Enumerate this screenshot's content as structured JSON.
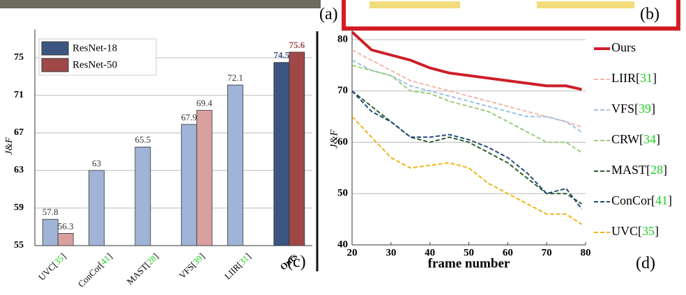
{
  "figure_labels": [
    "(a)",
    "(b)"
  ],
  "chart_data": [
    {
      "type": "bar",
      "annotation": "(c)",
      "y_label": "J&F",
      "categories": [
        "UVC[35]",
        "ConCor[41]",
        "MAST[28]",
        "VFS[39]",
        "LIIR[31]",
        "Ours"
      ],
      "series": [
        {
          "name": "ResNet-18",
          "color": "#3a5680",
          "colors": [
            "#9fb4d6",
            "#9fb4d6",
            "#9fb4d6",
            "#9fb4d6",
            "#9fb4d6",
            "#3a5680"
          ],
          "values": [
            57.8,
            63,
            65.5,
            67.9,
            72.1,
            74.5
          ]
        },
        {
          "name": "ResNet-50",
          "color": "#a04848",
          "colors": [
            "#d9a0a0",
            null,
            null,
            "#d9a0a0",
            null,
            "#a04848"
          ],
          "values": [
            56.3,
            null,
            null,
            69.4,
            null,
            75.6
          ]
        }
      ],
      "ylim": [
        55,
        78
      ],
      "yticks": [
        55,
        59,
        63,
        67,
        71,
        75
      ],
      "grid": true
    },
    {
      "type": "line",
      "annotation": "(d)",
      "x_label": "frame number",
      "y_label": "J&F",
      "x": [
        20,
        25,
        30,
        35,
        40,
        45,
        50,
        55,
        60,
        65,
        70,
        75,
        79
      ],
      "series": [
        {
          "name": "Ours",
          "color": "#cc1f2a",
          "dashed": false,
          "values": [
            81.5,
            78,
            77,
            76,
            74.5,
            73.5,
            73,
            72.5,
            72,
            71.5,
            71,
            71,
            70.3
          ]
        },
        {
          "name": "LIIR[31]",
          "color": "#f4b8a8",
          "dashed": true,
          "values": [
            78,
            76,
            74,
            72,
            71,
            70,
            69,
            68,
            67,
            66,
            65,
            64,
            63
          ]
        },
        {
          "name": "VFS[39]",
          "color": "#9cc4e4",
          "dashed": true,
          "values": [
            76,
            74,
            73,
            71,
            70,
            69,
            68,
            67,
            66,
            65,
            65,
            64,
            62
          ]
        },
        {
          "name": "CRW[34]",
          "color": "#9ccc7c",
          "dashed": true,
          "values": [
            75,
            74,
            73,
            70,
            69.5,
            68,
            67,
            66,
            64,
            62,
            60,
            60,
            58
          ]
        },
        {
          "name": "MAST[28]",
          "color": "#2e5e2e",
          "dashed": true,
          "values": [
            70,
            67,
            64,
            61,
            60,
            61,
            60,
            58,
            56,
            53,
            50,
            50,
            48
          ]
        },
        {
          "name": "ConCor[41]",
          "color": "#1f4a78",
          "dashed": true,
          "values": [
            70,
            66,
            64,
            61,
            61,
            61.5,
            60.5,
            59,
            57,
            54,
            50,
            51,
            47
          ]
        },
        {
          "name": "UVC[35]",
          "color": "#f0b419",
          "dashed": true,
          "values": [
            65,
            61,
            57,
            55,
            55.5,
            56,
            55,
            52,
            50,
            48,
            46,
            46,
            44
          ]
        }
      ],
      "xlim": [
        20,
        80
      ],
      "xticks": [
        20,
        30,
        40,
        50,
        60,
        70,
        80
      ],
      "ylim": [
        40,
        82
      ],
      "yticks": [
        40,
        50,
        60,
        70,
        80
      ],
      "grid": true
    }
  ]
}
